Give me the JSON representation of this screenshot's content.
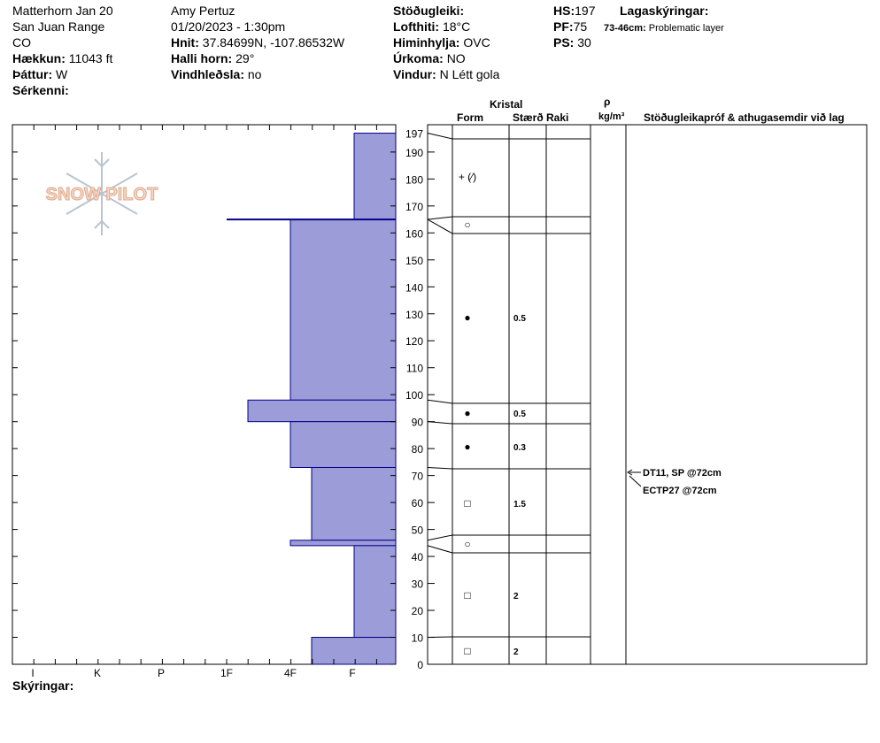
{
  "header": {
    "location": "Matterhorn Jan 20",
    "range": "San Juan Range",
    "state": "CO",
    "elevation_label": "Hækkun:",
    "elevation_value": "11043 ft",
    "aspect_label": "Þáttur:",
    "aspect_value": "W",
    "features_label": "Sérkenni:",
    "observer": "Amy  Pertuz",
    "datetime": "01/20/2023 - 1:30pm",
    "coords_label": "Hnit:",
    "coords_value": "37.84699N, -107.86532W",
    "slope_label": "Halli horn:",
    "slope_value": "29°",
    "wind_loading_label": "Vindhleðsla:",
    "wind_loading_value": "no",
    "stability_label": "Stöðugleiki:",
    "air_temp_label": "Lofthiti:",
    "air_temp_value": "18°C",
    "sky_label": "Himinhylja:",
    "sky_value": "OVC",
    "precip_label": "Úrkoma:",
    "precip_value": "NO",
    "wind_label": "Vindur:",
    "wind_value": "N Létt gola",
    "hs_label": "HS:",
    "hs_value": "197",
    "pf_label": "PF:",
    "pf_value": "75",
    "ps_label": "PS:",
    "ps_value": "30",
    "layer_notes_label": "Lagaskýringar:",
    "layer_note_range": "73-46cm:",
    "layer_note_text": "Problematic layer"
  },
  "logo_text": "SNOW PILOT",
  "columns": {
    "crystal": "Kristal",
    "form": "Form",
    "size": "Stærð",
    "moisture": "Raki",
    "rho": "ρ",
    "density_unit": "kg/m³",
    "tests": "Stöðugleikapróf & athugasemdir við lag"
  },
  "footer": {
    "notes_label": "Skýringar:"
  },
  "annotations": [
    "DT11, SP @72cm",
    "ECTP27 @72cm"
  ],
  "colors": {
    "layer_fill": "#9C9CD8",
    "layer_edge": "#00008B"
  },
  "chart_data": {
    "type": "bar",
    "orientation": "horizontal",
    "hardness_scale": [
      "I",
      "K",
      "P",
      "1F",
      "4F",
      "F"
    ],
    "y_ticks": [
      0,
      10,
      20,
      30,
      40,
      50,
      60,
      70,
      80,
      90,
      100,
      110,
      120,
      130,
      140,
      150,
      160,
      170,
      180,
      190,
      197
    ],
    "ylim": [
      0,
      197
    ],
    "layers": [
      {
        "top": 197,
        "bottom": 165,
        "hardness": 1,
        "form": "+ (⁄)",
        "size": ""
      },
      {
        "top": 165,
        "bottom": 98,
        "hardness": 2,
        "form": "○",
        "size": ""
      },
      {
        "top": 98,
        "bottom": 90,
        "hardness": 2,
        "form": "●",
        "size": "0.5"
      },
      {
        "top": 90,
        "bottom": 73,
        "hardness": 2,
        "form": "●",
        "size": "0.5"
      },
      {
        "top": 73,
        "bottom": 46,
        "hardness": 2,
        "form": "●",
        "size": "0.3"
      },
      {
        "top": 46,
        "bottom": 44,
        "hardness": 2,
        "form": "□",
        "size": "1.5"
      },
      {
        "top": 44,
        "bottom": 10,
        "hardness": 1,
        "form": "○",
        "size": ""
      },
      {
        "top": 10,
        "bottom": 0,
        "hardness": 1,
        "form": "□",
        "size": "2"
      }
    ]
  }
}
